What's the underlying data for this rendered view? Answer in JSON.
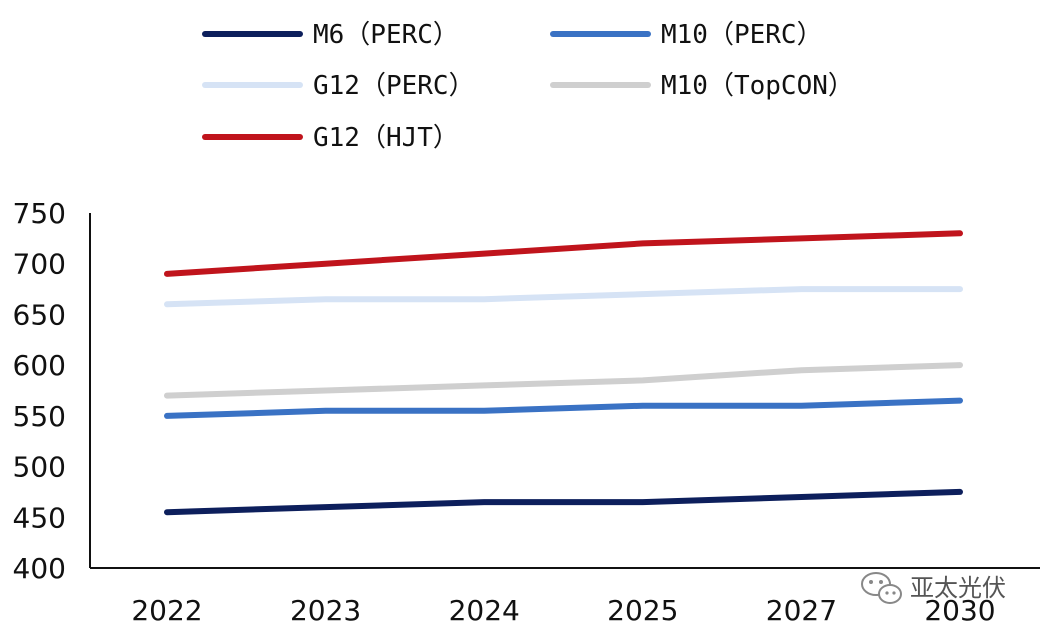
{
  "chart_data": {
    "type": "line",
    "categories": [
      "2022",
      "2023",
      "2024",
      "2025",
      "2027",
      "2030"
    ],
    "ylim": [
      400,
      750
    ],
    "yticks": [
      400,
      450,
      500,
      550,
      600,
      650,
      700,
      750
    ],
    "grid": false,
    "legend_position": "top",
    "series": [
      {
        "name": "M6（PERC）",
        "color": "#0d1f5c",
        "values": [
          455,
          460,
          465,
          465,
          470,
          475
        ]
      },
      {
        "name": "M10（PERC）",
        "color": "#3a72c4",
        "values": [
          550,
          555,
          555,
          560,
          560,
          565
        ]
      },
      {
        "name": "G12（PERC）",
        "color": "#d6e3f5",
        "values": [
          660,
          665,
          665,
          670,
          675,
          675
        ]
      },
      {
        "name": "M10（TopCON）",
        "color": "#cfcfcf",
        "values": [
          570,
          575,
          580,
          585,
          595,
          600
        ]
      },
      {
        "name": "G12（HJT）",
        "color": "#c0141c",
        "values": [
          690,
          700,
          710,
          720,
          725,
          730
        ]
      }
    ]
  },
  "watermark": {
    "text": "亚太光伏",
    "icon": "wechat-icon",
    "color": "#888888"
  }
}
